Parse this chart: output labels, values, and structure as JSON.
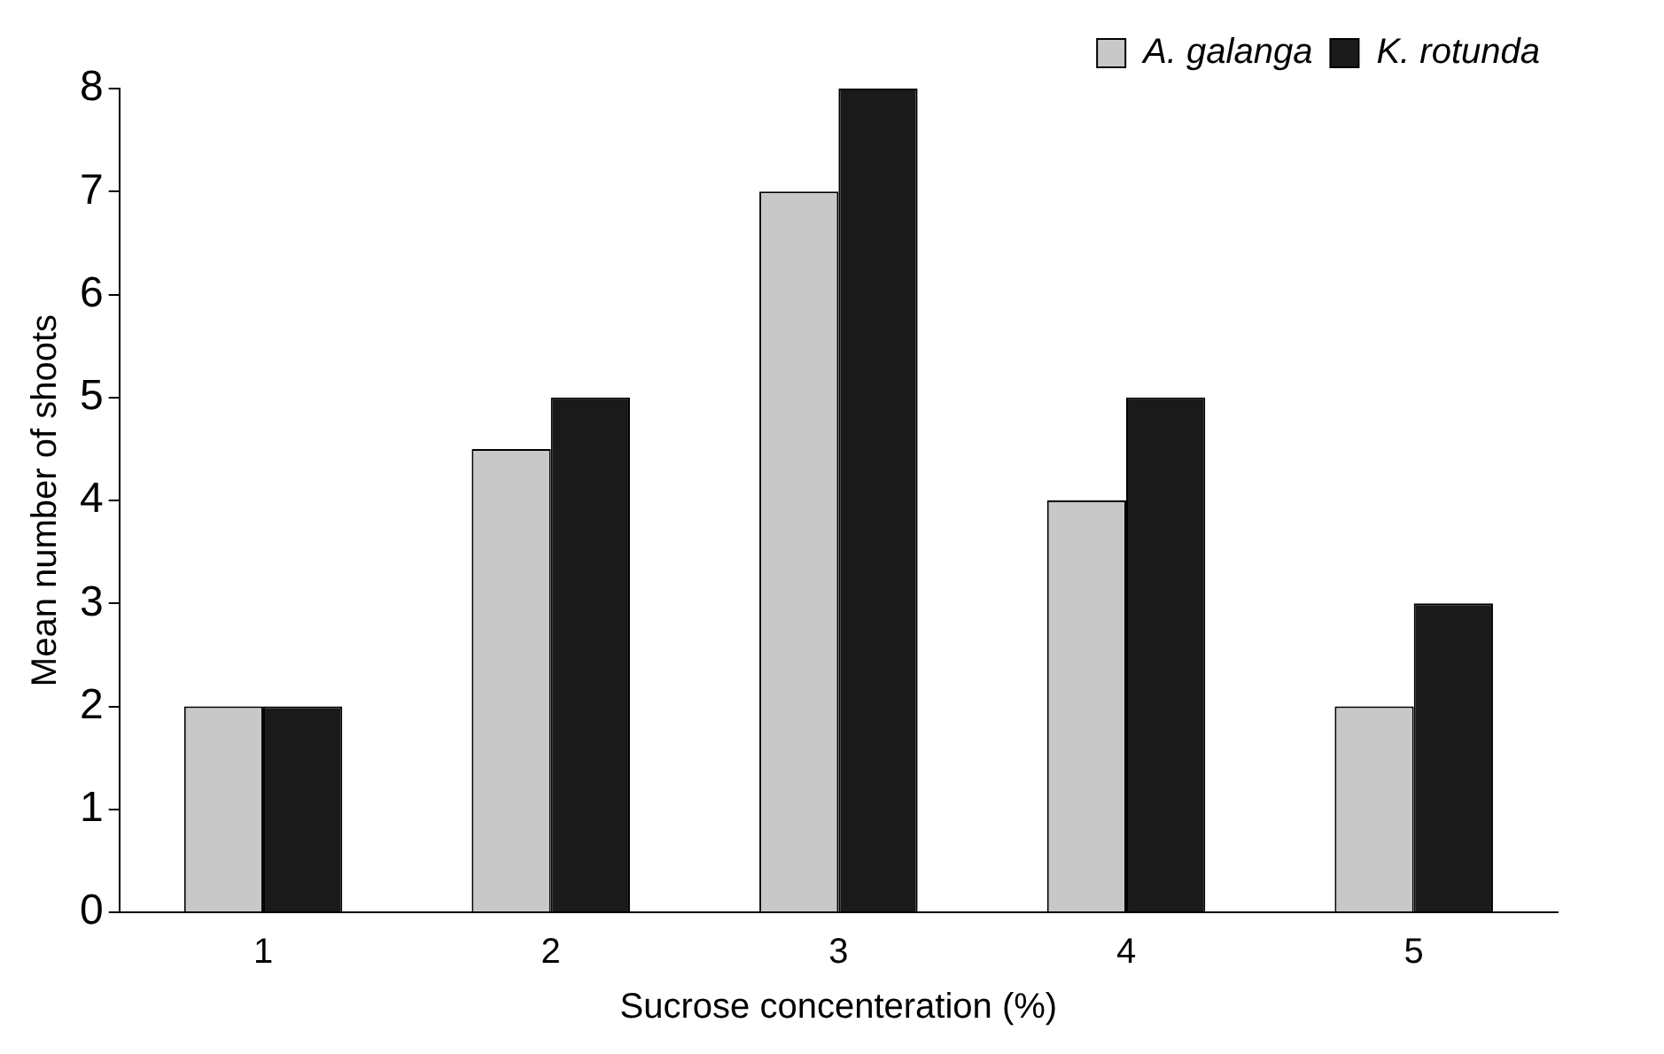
{
  "chart_data": {
    "type": "bar",
    "xlabel": "Sucrose concenteration (%)",
    "ylabel": "Mean number of shoots",
    "categories": [
      "1",
      "2",
      "3",
      "4",
      "5"
    ],
    "series": [
      {
        "name": "A. galanga",
        "color": "#c8c8c8",
        "values": [
          2,
          4.5,
          7,
          4,
          2
        ]
      },
      {
        "name": "K. rotunda",
        "color": "#1a1a1a",
        "values": [
          2,
          5,
          8,
          5,
          3
        ]
      }
    ],
    "ylim": [
      0,
      8
    ],
    "yticks": [
      0,
      1,
      2,
      3,
      4,
      5,
      6,
      7,
      8
    ],
    "grid": false,
    "legend": "top right"
  }
}
